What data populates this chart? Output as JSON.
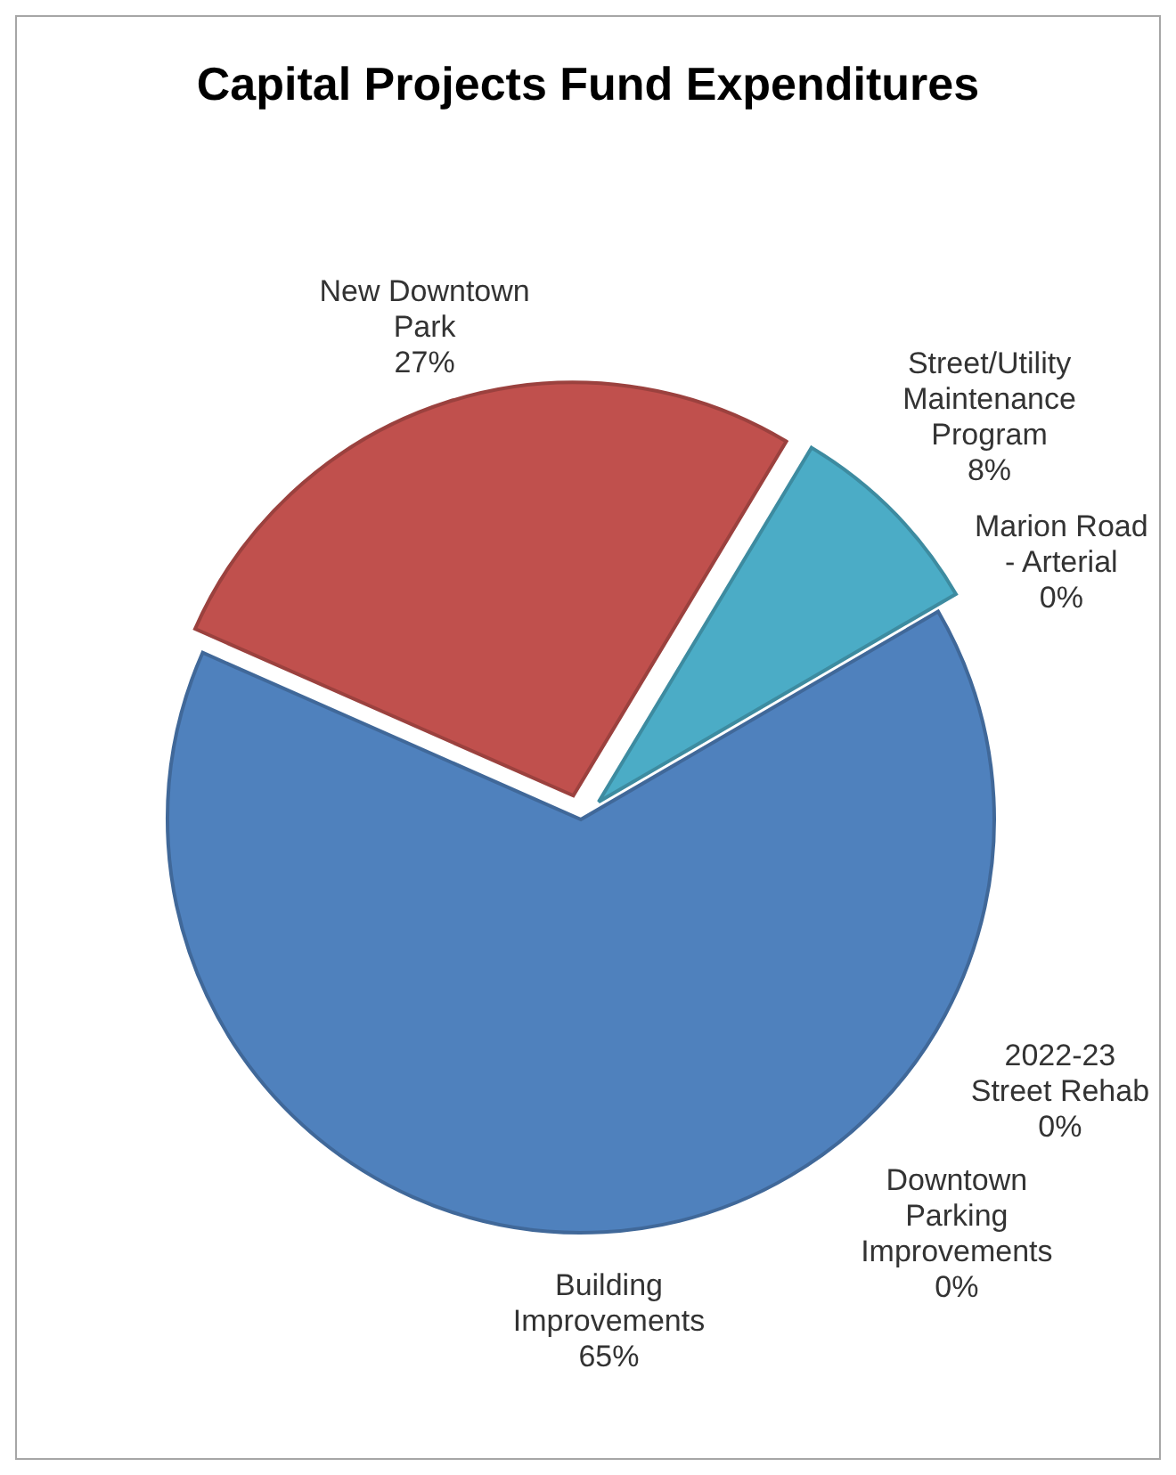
{
  "chart_data": {
    "type": "pie",
    "title": "Capital Projects Fund Expenditures",
    "categories": [
      "Street/Utility Maintenance Program",
      "2022-23 Street Rehab",
      "Marion Road - Arterial",
      "Downtown Parking Improvements",
      "Building Improvements",
      "New Downtown Park"
    ],
    "values": [
      8,
      0,
      0,
      0,
      65,
      27
    ],
    "colors": [
      "#4bacc6",
      "#9bbb59",
      "#8064a2",
      "#f79646",
      "#4f81bd",
      "#c0504d"
    ],
    "value_labels": [
      "8%",
      "0%",
      "0%",
      "0%",
      "65%",
      "27%"
    ]
  }
}
